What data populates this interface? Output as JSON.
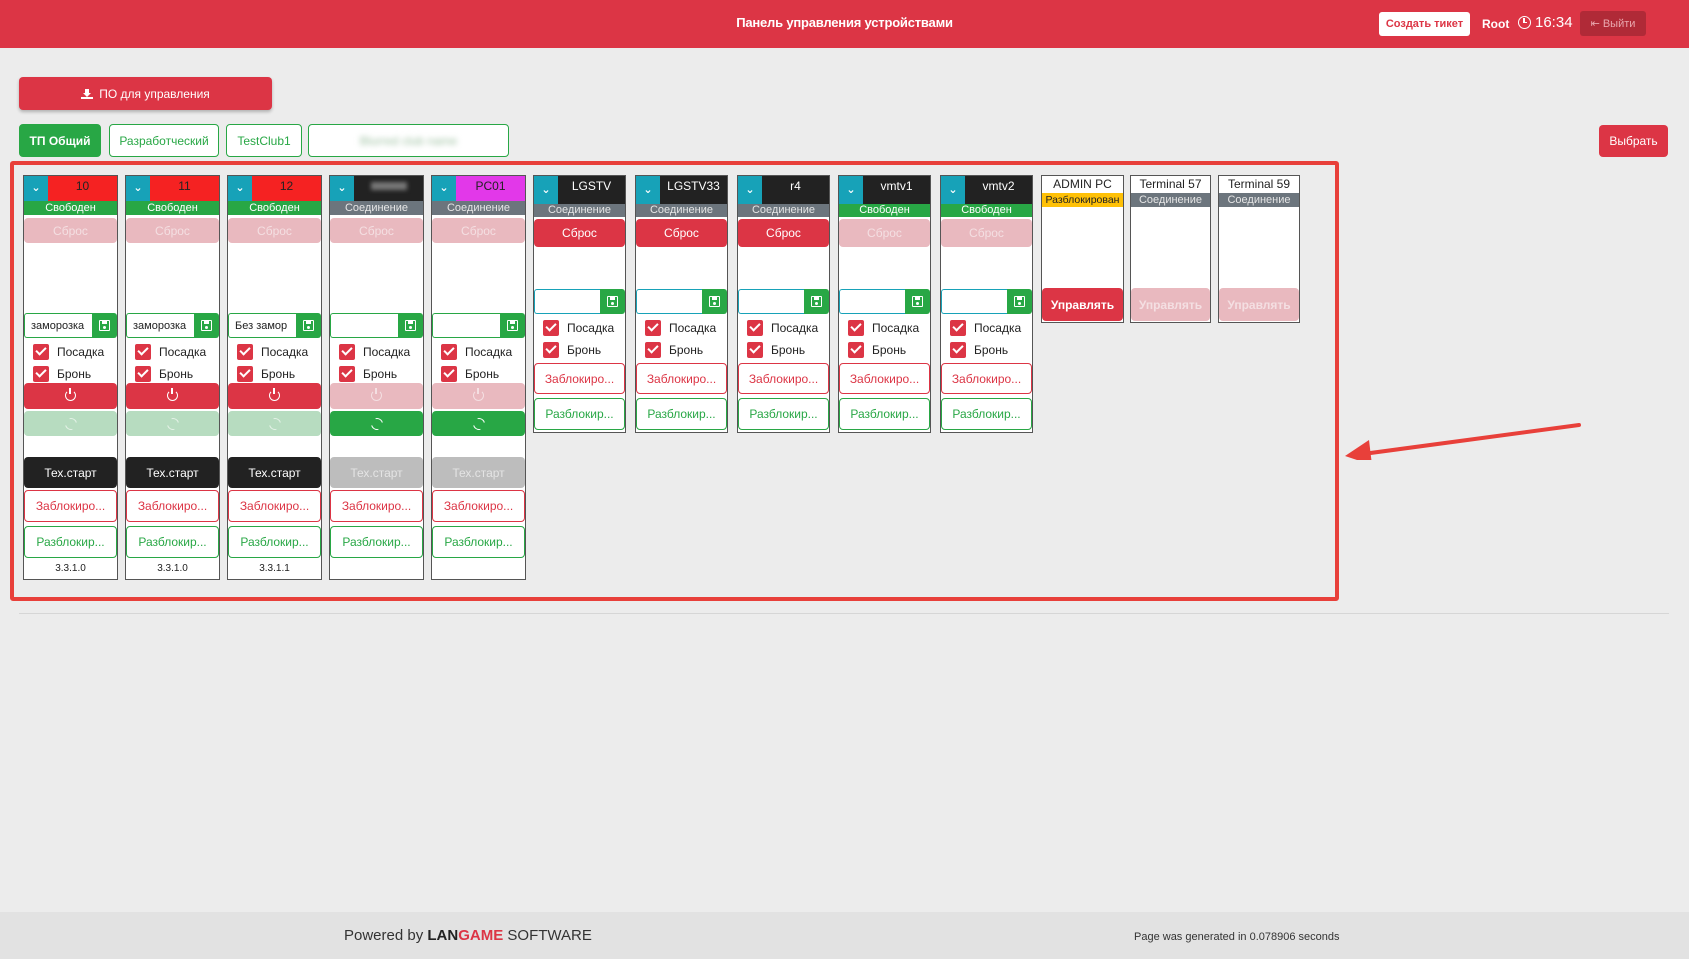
{
  "header": {
    "title": "Панель управления устройствами",
    "ticket": "Создать тикет",
    "user": "Root",
    "time": "16:34",
    "logout": "Выйти",
    "clock_icon": "clock-icon",
    "logout_icon": "sign-out-icon"
  },
  "download": {
    "label": "ПО для управления",
    "icon": "download-icon"
  },
  "tabs": [
    {
      "label": "ТП Общий",
      "active": true
    },
    {
      "label": "Разработческий"
    },
    {
      "label": "TestClub1"
    },
    {
      "label": "Blurred club name"
    }
  ],
  "select": "Выбрать",
  "labels": {
    "reset": "Сброс",
    "seat": "Посадка",
    "bron": "Бронь",
    "block": "Заблокиро...",
    "unblock": "Разблокир...",
    "techstart": "Тех.старт",
    "manage": "Управлять"
  },
  "devices": [
    {
      "name": "10",
      "status": "Свободен",
      "input": "заморозка",
      "version": "3.3.1.0"
    },
    {
      "name": "11",
      "status": "Свободен",
      "input": "заморозка",
      "version": "3.3.1.0"
    },
    {
      "name": "12",
      "status": "Свободен",
      "input": "Без замор",
      "version": "3.3.1.1"
    },
    {
      "name": "",
      "status": "Соединение",
      "input": ""
    },
    {
      "name": "PC01",
      "status": "Соединение",
      "input": ""
    },
    {
      "name": "LGSTV",
      "status": "Соединение",
      "input": ""
    },
    {
      "name": "LGSTV33",
      "status": "Соединение",
      "input": ""
    },
    {
      "name": "r4",
      "status": "Соединение",
      "input": ""
    },
    {
      "name": "vmtv1",
      "status": "Свободен",
      "input": ""
    },
    {
      "name": "vmtv2",
      "status": "Свободен",
      "input": ""
    }
  ],
  "terminals": [
    {
      "name": "ADMIN PC",
      "status": "Разблокирован"
    },
    {
      "name": "Terminal 57",
      "status": "Соединение"
    },
    {
      "name": "Terminal 59",
      "status": "Соединение"
    }
  ],
  "footer": {
    "powered": "Powered by",
    "brand_a": "LAN",
    "brand_b": "GAME",
    "brand_c": "SOFTWARE",
    "generated": "Page was generated in 0.078906 seconds"
  },
  "colors": {
    "primary": "#dc3545",
    "success": "#28a745",
    "info": "#17a2b8",
    "warning": "#ffc107"
  }
}
